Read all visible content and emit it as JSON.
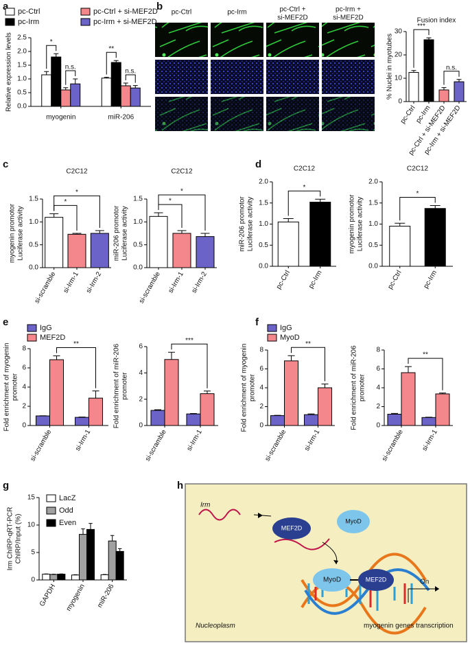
{
  "panel_labels": [
    "a",
    "b",
    "c",
    "d",
    "e",
    "f",
    "g",
    "h"
  ],
  "microscopy": {
    "columns": [
      [
        "pc-Ctrl"
      ],
      [
        "pc-Irm"
      ],
      [
        "pc-Ctrl +",
        "si-MEF2D"
      ],
      [
        "pc-Irm +",
        "si-MEF2D"
      ]
    ]
  },
  "diagram": {
    "labels": [
      "Irm",
      "MEF2D",
      "MyoD",
      "MyoD",
      "MEF2D",
      "On",
      "Nucleoplasm",
      "myogenin genes transcription"
    ]
  },
  "chart_data": [
    {
      "type": "grouped_bar",
      "ylabel": [
        "Relative expression levels"
      ],
      "categories": [
        "myogenin",
        "miR-206"
      ],
      "series": [
        {
          "name": "pc-Ctrl",
          "color": "#ffffff",
          "values": [
            1.15,
            1.03
          ],
          "errors": [
            0.12,
            0.03
          ]
        },
        {
          "name": "pc-Irm",
          "color": "#000000",
          "values": [
            1.8,
            1.6
          ],
          "errors": [
            0.12,
            0.07
          ]
        },
        {
          "name": "pc-Ctrl + si-MEF2D",
          "color": "#f4878c",
          "values": [
            0.6,
            0.75
          ],
          "errors": [
            0.08,
            0.1
          ]
        },
        {
          "name": "pc-Irm + si-MEF2D",
          "color": "#6b63c8",
          "values": [
            0.82,
            0.67
          ],
          "errors": [
            0.18,
            0.09
          ]
        }
      ],
      "ylim": [
        0,
        2.5
      ],
      "yticks": [
        {
          "value": 0,
          "label": "0.0"
        },
        0.5,
        {
          "value": 1,
          "label": "1.0"
        },
        1.5,
        {
          "value": 2,
          "label": "2.0"
        },
        2.5
      ],
      "annotations": [
        "*",
        "n.s.",
        "**",
        "n.s."
      ]
    },
    {
      "type": "bar",
      "title": "Fusion index",
      "ylabel": [
        "% Nuclei in myotubes"
      ],
      "categories": [
        "pc-Ctrl",
        "pc-Irm",
        "pc-Ctrl + si-MEF2D",
        "pc-Irm + si-MEF2D"
      ],
      "values": [
        12.5,
        26.5,
        5,
        8.5
      ],
      "errors": [
        0.8,
        0.8,
        1,
        1
      ],
      "colors": [
        "#ffffff",
        "#000000",
        "#f4878c",
        "#6b63c8"
      ],
      "ylim": [
        0,
        30
      ],
      "yticks": [
        0,
        10,
        20,
        30
      ],
      "annotations": [
        "***",
        "n.s."
      ]
    },
    {
      "type": "bar",
      "title": "C2C12",
      "ylabel": [
        "myogenin promotor",
        "Luciferase activity"
      ],
      "categories": [
        "si-scramble",
        "si-Irm-1",
        "si-Irm-2"
      ],
      "values": [
        1.1,
        0.73,
        0.75
      ],
      "errors": [
        0.08,
        0.02,
        0.06
      ],
      "colors": [
        "#ffffff",
        "#f4878c",
        "#6b63c8"
      ],
      "ylim": [
        0,
        1.5
      ],
      "yticks": [
        {
          "value": 0,
          "label": "0.0"
        },
        0.5,
        {
          "value": 1,
          "label": "1.0"
        },
        1.5
      ],
      "annotations": [
        "*",
        "*"
      ]
    },
    {
      "type": "bar",
      "title": "C2C12",
      "ylabel": [
        "miR-206 promotor",
        "Luciferase activity"
      ],
      "categories": [
        "si-scramble",
        "si-Irm-1",
        "si-Irm-2"
      ],
      "values": [
        1.12,
        0.75,
        0.68
      ],
      "errors": [
        0.08,
        0.06,
        0.07
      ],
      "colors": [
        "#ffffff",
        "#f4878c",
        "#6b63c8"
      ],
      "ylim": [
        0,
        1.5
      ],
      "yticks": [
        {
          "value": 0,
          "label": "0.0"
        },
        0.5,
        {
          "value": 1,
          "label": "1.0"
        },
        1.5
      ],
      "annotations": [
        "*",
        "*"
      ]
    },
    {
      "type": "bar",
      "title": "C2C12",
      "ylabel": [
        "miR-206 promotor",
        "Luciferase activity"
      ],
      "categories": [
        "pc-Ctrl",
        "pc-Irm"
      ],
      "values": [
        1.05,
        1.52
      ],
      "errors": [
        0.08,
        0.07
      ],
      "colors": [
        "#ffffff",
        "#000000"
      ],
      "ylim": [
        0,
        2
      ],
      "yticks": [
        {
          "value": 0,
          "label": "0.0"
        },
        0.5,
        {
          "value": 1,
          "label": "1.0"
        },
        1.5,
        {
          "value": 2,
          "label": "2.0"
        }
      ],
      "annotations": [
        "*"
      ]
    },
    {
      "type": "bar",
      "title": "C2C12",
      "ylabel": [
        "myogenin promotor",
        "Luciferase activity"
      ],
      "categories": [
        "pc-Ctrl",
        "pc-Irm"
      ],
      "values": [
        0.95,
        1.37
      ],
      "errors": [
        0.07,
        0.07
      ],
      "colors": [
        "#ffffff",
        "#000000"
      ],
      "ylim": [
        0,
        2
      ],
      "yticks": [
        {
          "value": 0,
          "label": "0.0"
        },
        0.5,
        {
          "value": 1,
          "label": "1.0"
        },
        1.5,
        {
          "value": 2,
          "label": "2.0"
        }
      ],
      "annotations": [
        "*"
      ]
    },
    {
      "type": "grouped_bar",
      "ylabel": [
        "Fold enrichment of myogenin",
        "promoter"
      ],
      "categories": [
        "si-scramble",
        "si-Irm-1"
      ],
      "series": [
        {
          "name": "IgG",
          "color": "#6b63c8",
          "values": [
            1.0,
            0.85
          ],
          "errors": [
            0.02,
            0.03
          ]
        },
        {
          "name": "MEF2D",
          "color": "#f4878c",
          "values": [
            6.85,
            2.85
          ],
          "errors": [
            0.4,
            0.75
          ]
        }
      ],
      "ylim": [
        0,
        8
      ],
      "yticks": [
        0,
        2,
        4,
        6,
        8
      ],
      "annotations": [
        "**"
      ]
    },
    {
      "type": "grouped_bar",
      "ylabel": [
        "Fold enrichment of miR-206",
        "promoter"
      ],
      "categories": [
        "si-scramble",
        "si-Irm-1"
      ],
      "series": [
        {
          "name": "IgG",
          "color": "#6b63c8",
          "values": [
            1.15,
            0.88
          ],
          "errors": [
            0.05,
            0.03
          ]
        },
        {
          "name": "MEF2D",
          "color": "#f4878c",
          "values": [
            5.02,
            2.42
          ],
          "errors": [
            0.55,
            0.2
          ]
        }
      ],
      "ylim": [
        0,
        6
      ],
      "yticks": [
        0,
        2,
        4,
        6
      ],
      "annotations": [
        "***"
      ]
    },
    {
      "type": "grouped_bar",
      "ylabel": [
        "Fold enrichment of myogenin",
        "promoter"
      ],
      "categories": [
        "si-scramble",
        "si-Irm-1"
      ],
      "series": [
        {
          "name": "IgG",
          "color": "#6b63c8",
          "values": [
            1.05,
            1.15
          ],
          "errors": [
            0.03,
            0.08
          ]
        },
        {
          "name": "MyoD",
          "color": "#f4878c",
          "values": [
            6.85,
            4.0
          ],
          "errors": [
            0.55,
            0.4
          ]
        }
      ],
      "ylim": [
        0,
        8
      ],
      "yticks": [
        0,
        2,
        4,
        6,
        8
      ],
      "annotations": [
        "**"
      ]
    },
    {
      "type": "grouped_bar",
      "ylabel": [
        "Fold enrichment of miR-206",
        "promoter"
      ],
      "categories": [
        "si-scramble",
        "si-Irm-1"
      ],
      "series": [
        {
          "name": "IgG",
          "color": "#6b63c8",
          "values": [
            1.2,
            0.85
          ],
          "errors": [
            0.08,
            0.03
          ]
        },
        {
          "name": "MyoD",
          "color": "#f4878c",
          "values": [
            5.6,
            3.35
          ],
          "errors": [
            0.65,
            0.1
          ]
        }
      ],
      "ylim": [
        0,
        8
      ],
      "yticks": [
        0,
        2,
        4,
        6,
        8
      ],
      "annotations": [
        "**"
      ]
    },
    {
      "type": "grouped_bar",
      "ylabel": [
        "Irm ChIRP-qRT-PCR",
        "ChIRP/Input (%)"
      ],
      "categories": [
        "GAPDH",
        "myogenin",
        "miR-206"
      ],
      "series": [
        {
          "name": "LacZ",
          "color": "#ffffff",
          "values": [
            1.05,
            0.9,
            0.95
          ],
          "errors": [
            0.05,
            0.05,
            0.05
          ]
        },
        {
          "name": "Odd",
          "color": "#a0a0a0",
          "values": [
            1.0,
            8.3,
            7.1
          ],
          "errors": [
            0.05,
            1.0,
            1.0
          ]
        },
        {
          "name": "Even",
          "color": "#000000",
          "values": [
            1.05,
            9.2,
            5.2
          ],
          "errors": [
            0.05,
            1.1,
            0.5
          ]
        }
      ],
      "ylim": [
        0,
        15
      ],
      "yticks": [
        0,
        5,
        10,
        15
      ],
      "annotations": []
    }
  ]
}
